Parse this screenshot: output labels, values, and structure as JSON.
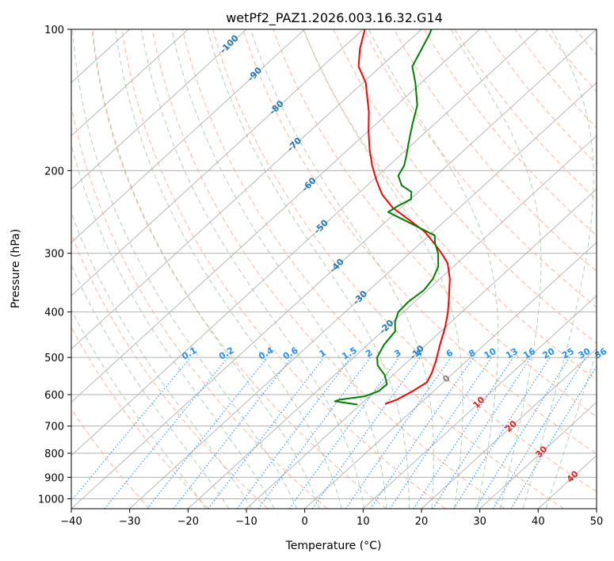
{
  "chart_data": {
    "type": "line",
    "subtype": "skew-t log-p diagram",
    "title": "wetPf2_PAZ1.2026.003.16.32.G14",
    "xlabel": "Temperature (°C)",
    "ylabel": "Pressure (hPa)",
    "xlim": [
      -40,
      50
    ],
    "ylim": [
      1050,
      100
    ],
    "x_ticks": [
      -40,
      -30,
      -20,
      -10,
      0,
      10,
      20,
      30,
      40,
      50
    ],
    "x_tick_labels": [
      "−40",
      "−30",
      "−20",
      "−10",
      "0",
      "10",
      "20",
      "30",
      "40",
      "50"
    ],
    "y_ticks": [
      1000,
      900,
      800,
      700,
      600,
      500,
      400,
      300,
      200,
      100
    ],
    "y_tick_labels": [
      "1000",
      "900",
      "800",
      "700",
      "600",
      "500",
      "400",
      "300",
      "200",
      "100"
    ],
    "grid": true,
    "colors": {
      "temperature": "#ff0000",
      "dewpoint": "#008000",
      "isotherm": "#b0b0b0",
      "dry_adiabat": "#ffa07a",
      "moist_adiabat": "#8fbc8f",
      "mixing_ratio": "#1e90ff",
      "freezing_level_label": "#808080",
      "warm_label": "#d62728",
      "cold_label": "#1f77b4"
    },
    "series": [
      {
        "name": "Temperature",
        "color": "#ff0000",
        "points": [
          {
            "p": 628,
            "t": -5.9
          },
          {
            "p": 615,
            "t": -4.7
          },
          {
            "p": 590,
            "t": -3.6
          },
          {
            "p": 565,
            "t": -2.8
          },
          {
            "p": 540,
            "t": -3.7
          },
          {
            "p": 510,
            "t": -5.2
          },
          {
            "p": 470,
            "t": -7.6
          },
          {
            "p": 430,
            "t": -10.1
          },
          {
            "p": 400,
            "t": -12.4
          },
          {
            "p": 370,
            "t": -15.2
          },
          {
            "p": 340,
            "t": -18.3
          },
          {
            "p": 315,
            "t": -21.6
          },
          {
            "p": 300,
            "t": -24.5
          },
          {
            "p": 285,
            "t": -27.8
          },
          {
            "p": 270,
            "t": -31.4
          },
          {
            "p": 255,
            "t": -36.2
          },
          {
            "p": 240,
            "t": -41.4
          },
          {
            "p": 225,
            "t": -45.7
          },
          {
            "p": 210,
            "t": -49.3
          },
          {
            "p": 195,
            "t": -52.9
          },
          {
            "p": 180,
            "t": -56.4
          },
          {
            "p": 165,
            "t": -59.9
          },
          {
            "p": 150,
            "t": -63.5
          },
          {
            "p": 140,
            "t": -66.4
          },
          {
            "p": 130,
            "t": -69.5
          },
          {
            "p": 120,
            "t": -73.8
          },
          {
            "p": 110,
            "t": -76.9
          },
          {
            "p": 100,
            "t": -79.7
          }
        ]
      },
      {
        "name": "Dewpoint",
        "color": "#008000",
        "points": [
          {
            "p": 630,
            "t": -10.5
          },
          {
            "p": 620,
            "t": -15.0
          },
          {
            "p": 615,
            "t": -14.5
          },
          {
            "p": 605,
            "t": -10.8
          },
          {
            "p": 590,
            "t": -9.4
          },
          {
            "p": 570,
            "t": -9.3
          },
          {
            "p": 545,
            "t": -11.4
          },
          {
            "p": 520,
            "t": -14.4
          },
          {
            "p": 500,
            "t": -16.0
          },
          {
            "p": 470,
            "t": -17.2
          },
          {
            "p": 440,
            "t": -17.8
          },
          {
            "p": 420,
            "t": -19.6
          },
          {
            "p": 400,
            "t": -20.9
          },
          {
            "p": 380,
            "t": -21.1
          },
          {
            "p": 360,
            "t": -20.6
          },
          {
            "p": 340,
            "t": -21.2
          },
          {
            "p": 320,
            "t": -22.6
          },
          {
            "p": 300,
            "t": -25.1
          },
          {
            "p": 285,
            "t": -27.6
          },
          {
            "p": 275,
            "t": -29.0
          },
          {
            "p": 260,
            "t": -35.0
          },
          {
            "p": 252,
            "t": -38.4
          },
          {
            "p": 245,
            "t": -41.4
          },
          {
            "p": 238,
            "t": -40.9
          },
          {
            "p": 230,
            "t": -39.9
          },
          {
            "p": 222,
            "t": -41.2
          },
          {
            "p": 215,
            "t": -44.1
          },
          {
            "p": 205,
            "t": -46.5
          },
          {
            "p": 195,
            "t": -47.4
          },
          {
            "p": 185,
            "t": -49.0
          },
          {
            "p": 175,
            "t": -50.8
          },
          {
            "p": 160,
            "t": -53.6
          },
          {
            "p": 145,
            "t": -56.5
          },
          {
            "p": 130,
            "t": -61.0
          },
          {
            "p": 120,
            "t": -64.6
          },
          {
            "p": 110,
            "t": -66.3
          },
          {
            "p": 102,
            "t": -67.8
          },
          {
            "p": 100,
            "t": -68.3
          }
        ]
      }
    ],
    "isotherm_labels": [
      {
        "value": "-100"
      },
      {
        "value": "-90"
      },
      {
        "value": "-80"
      },
      {
        "value": "-70"
      },
      {
        "value": "-60"
      },
      {
        "value": "-50"
      },
      {
        "value": "-40"
      },
      {
        "value": "-30"
      },
      {
        "value": "-20"
      },
      {
        "value": "-10"
      },
      {
        "value": "0"
      },
      {
        "value": "10"
      },
      {
        "value": "20"
      },
      {
        "value": "30"
      },
      {
        "value": "40"
      }
    ],
    "mixing_ratio_labels": [
      "0.1",
      "0.2",
      "0.4",
      "0.6",
      "1",
      "1.5",
      "2",
      "3",
      "4",
      "6",
      "8",
      "10",
      "13",
      "16",
      "20",
      "25",
      "30",
      "36"
    ],
    "mixing_ratio_values": [
      0.1,
      0.2,
      0.4,
      0.6,
      1,
      1.5,
      2,
      3,
      4,
      6,
      8,
      10,
      13,
      16,
      20,
      25,
      30,
      36
    ]
  }
}
